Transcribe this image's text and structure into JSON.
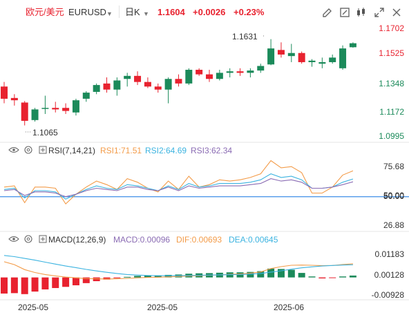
{
  "header": {
    "symbol_cn": "欧元/美元",
    "symbol": "EURUSD",
    "interval": "日K",
    "last": "1.1604",
    "change": "+0.0026",
    "change_pct": "+0.23%",
    "icons": [
      "chevron-down-icon",
      "chevron-down-icon",
      "draw-pen-icon",
      "fullscreen-icon",
      "close-icon",
      "candle-type-icon",
      "expand-icon"
    ]
  },
  "price_pane": {
    "high_marker": "1.1631",
    "low_marker": "1.1065",
    "axis_ticks": [
      "1.1702",
      "1.1525",
      "1.1348",
      "1.1172",
      "1.0995"
    ]
  },
  "rsi_pane": {
    "label": "RSI(7,14,21)",
    "rsi1": "RSI1:71.51",
    "rsi2": "RSI2:64.69",
    "rsi3": "RSI3:62.34",
    "axis_ticks": [
      "75.68",
      "50.00",
      "50.00",
      "26.88"
    ]
  },
  "macd_pane": {
    "label": "MACD(12,26,9)",
    "macd": "MACD:0.00096",
    "dif": "DIF:0.00693",
    "dea": "DEA:0.00645",
    "axis_ticks": [
      "0.01183",
      "0.00128",
      "-0.00928"
    ]
  },
  "x_axis": [
    "2025-05",
    "2025-05",
    "2025-06"
  ],
  "colors": {
    "up": "#e8222f",
    "down": "#1b8a5a",
    "rsi1": "#f39b48",
    "rsi2": "#3bb3e0",
    "rsi3": "#8a6bb3",
    "dif": "#f39b48",
    "dea": "#3bb3e0",
    "ref_line": "#3d8ee8",
    "header_red": "#e8222f"
  },
  "chart_data": [
    {
      "type": "candlestick",
      "title": "欧元/美元 EURUSD 日K",
      "ylim": [
        1.0995,
        1.1702
      ],
      "ohlc": [
        {
          "o": 1.132,
          "h": 1.135,
          "l": 1.121,
          "c": 1.124
        },
        {
          "o": 1.1245,
          "h": 1.127,
          "l": 1.1195,
          "c": 1.123
        },
        {
          "o": 1.1215,
          "h": 1.1225,
          "l": 1.1065,
          "c": 1.1095
        },
        {
          "o": 1.11,
          "h": 1.118,
          "l": 1.109,
          "c": 1.117
        },
        {
          "o": 1.1175,
          "h": 1.126,
          "l": 1.114,
          "c": 1.118
        },
        {
          "o": 1.118,
          "h": 1.122,
          "l": 1.115,
          "c": 1.117
        },
        {
          "o": 1.118,
          "h": 1.121,
          "l": 1.114,
          "c": 1.116
        },
        {
          "o": 1.115,
          "h": 1.124,
          "l": 1.113,
          "c": 1.123
        },
        {
          "o": 1.124,
          "h": 1.129,
          "l": 1.122,
          "c": 1.128
        },
        {
          "o": 1.1285,
          "h": 1.134,
          "l": 1.127,
          "c": 1.133
        },
        {
          "o": 1.134,
          "h": 1.138,
          "l": 1.128,
          "c": 1.13
        },
        {
          "o": 1.13,
          "h": 1.138,
          "l": 1.126,
          "c": 1.136
        },
        {
          "o": 1.137,
          "h": 1.141,
          "l": 1.132,
          "c": 1.139
        },
        {
          "o": 1.139,
          "h": 1.142,
          "l": 1.133,
          "c": 1.135
        },
        {
          "o": 1.135,
          "h": 1.138,
          "l": 1.131,
          "c": 1.132
        },
        {
          "o": 1.132,
          "h": 1.134,
          "l": 1.128,
          "c": 1.13
        },
        {
          "o": 1.13,
          "h": 1.138,
          "l": 1.121,
          "c": 1.137
        },
        {
          "o": 1.137,
          "h": 1.14,
          "l": 1.132,
          "c": 1.134
        },
        {
          "o": 1.134,
          "h": 1.144,
          "l": 1.133,
          "c": 1.143
        },
        {
          "o": 1.143,
          "h": 1.144,
          "l": 1.139,
          "c": 1.14
        },
        {
          "o": 1.14,
          "h": 1.143,
          "l": 1.135,
          "c": 1.137
        },
        {
          "o": 1.137,
          "h": 1.143,
          "l": 1.136,
          "c": 1.141
        },
        {
          "o": 1.141,
          "h": 1.144,
          "l": 1.138,
          "c": 1.142
        },
        {
          "o": 1.142,
          "h": 1.144,
          "l": 1.139,
          "c": 1.141
        },
        {
          "o": 1.141,
          "h": 1.144,
          "l": 1.138,
          "c": 1.1425
        },
        {
          "o": 1.1425,
          "h": 1.147,
          "l": 1.141,
          "c": 1.1455
        },
        {
          "o": 1.1465,
          "h": 1.1631,
          "l": 1.146,
          "c": 1.157
        },
        {
          "o": 1.156,
          "h": 1.161,
          "l": 1.151,
          "c": 1.153
        },
        {
          "o": 1.152,
          "h": 1.16,
          "l": 1.148,
          "c": 1.154
        },
        {
          "o": 1.154,
          "h": 1.155,
          "l": 1.147,
          "c": 1.148
        },
        {
          "o": 1.148,
          "h": 1.15,
          "l": 1.145,
          "c": 1.149
        },
        {
          "o": 1.147,
          "h": 1.151,
          "l": 1.144,
          "c": 1.148
        },
        {
          "o": 1.148,
          "h": 1.153,
          "l": 1.147,
          "c": 1.151
        },
        {
          "o": 1.144,
          "h": 1.159,
          "l": 1.143,
          "c": 1.157
        },
        {
          "o": 1.1578,
          "h": 1.161,
          "l": 1.1575,
          "c": 1.1604
        }
      ]
    },
    {
      "type": "line",
      "title": "RSI(7,14,21)",
      "ylim": [
        26.88,
        75.68
      ],
      "series": [
        {
          "name": "RSI1",
          "values": [
            58,
            59,
            45,
            58,
            58,
            57,
            44,
            52,
            58,
            63,
            60,
            56,
            65,
            62,
            57,
            54,
            63,
            56,
            67,
            58,
            60,
            64,
            63,
            64,
            66,
            69,
            80,
            74,
            75,
            70,
            53,
            53,
            58,
            68,
            71.51
          ]
        },
        {
          "name": "RSI2",
          "values": [
            56,
            57,
            49,
            55,
            55,
            54,
            48,
            52,
            56,
            59,
            57,
            56,
            60,
            59,
            57,
            55,
            59,
            56,
            61,
            58,
            59,
            61,
            61,
            61,
            62,
            64,
            69,
            66,
            67,
            64,
            57,
            57,
            58,
            62,
            64.69
          ]
        },
        {
          "name": "RSI3",
          "values": [
            55,
            56,
            51,
            54,
            54,
            53,
            50,
            52,
            55,
            57,
            56,
            55,
            58,
            58,
            56,
            55,
            58,
            55,
            59,
            57,
            58,
            59,
            59,
            59,
            60,
            61,
            65,
            63,
            64,
            62,
            57,
            57,
            58,
            60,
            62.34
          ]
        }
      ]
    },
    {
      "type": "bar",
      "title": "MACD(12,26,9)",
      "ylim": [
        -0.00928,
        0.01183
      ],
      "series": [
        {
          "name": "MACD",
          "values": [
            -0.0082,
            -0.008,
            -0.0085,
            -0.0072,
            -0.0061,
            -0.0054,
            -0.0048,
            -0.004,
            -0.0029,
            -0.0019,
            -0.0011,
            -0.0004,
            0.0003,
            0.0008,
            0.001,
            0.0011,
            0.0013,
            0.0015,
            0.0019,
            0.0021,
            0.0022,
            0.0024,
            0.0026,
            0.0026,
            0.0028,
            0.0032,
            0.0045,
            0.0043,
            0.0039,
            0.0023,
            0.0005,
            -0.0005,
            -0.0002,
            0.0005,
            0.00096
          ]
        },
        {
          "name": "DIF",
          "values": [
            0.008,
            0.0065,
            0.004,
            0.0025,
            0.0015,
            0.0008,
            0.0002,
            -0.0002,
            -0.0006,
            -0.0007,
            -0.0008,
            -0.0007,
            -0.0005,
            -0.0002,
            0.0,
            0.0001,
            0.0003,
            0.0005,
            0.0007,
            0.0009,
            0.0011,
            0.0013,
            0.0016,
            0.0018,
            0.0022,
            0.0028,
            0.0045,
            0.0055,
            0.0062,
            0.0063,
            0.0062,
            0.006,
            0.0061,
            0.0066,
            0.00693
          ]
        },
        {
          "name": "DEA",
          "values": [
            0.0112,
            0.0106,
            0.0097,
            0.0088,
            0.0078,
            0.0068,
            0.0058,
            0.005,
            0.0041,
            0.0033,
            0.0026,
            0.002,
            0.0015,
            0.0012,
            0.001,
            0.0009,
            0.0009,
            0.0009,
            0.001,
            0.0011,
            0.0012,
            0.0013,
            0.0014,
            0.0015,
            0.0017,
            0.002,
            0.0027,
            0.0034,
            0.0042,
            0.0049,
            0.0054,
            0.0058,
            0.0061,
            0.0063,
            0.00645
          ]
        }
      ]
    }
  ]
}
